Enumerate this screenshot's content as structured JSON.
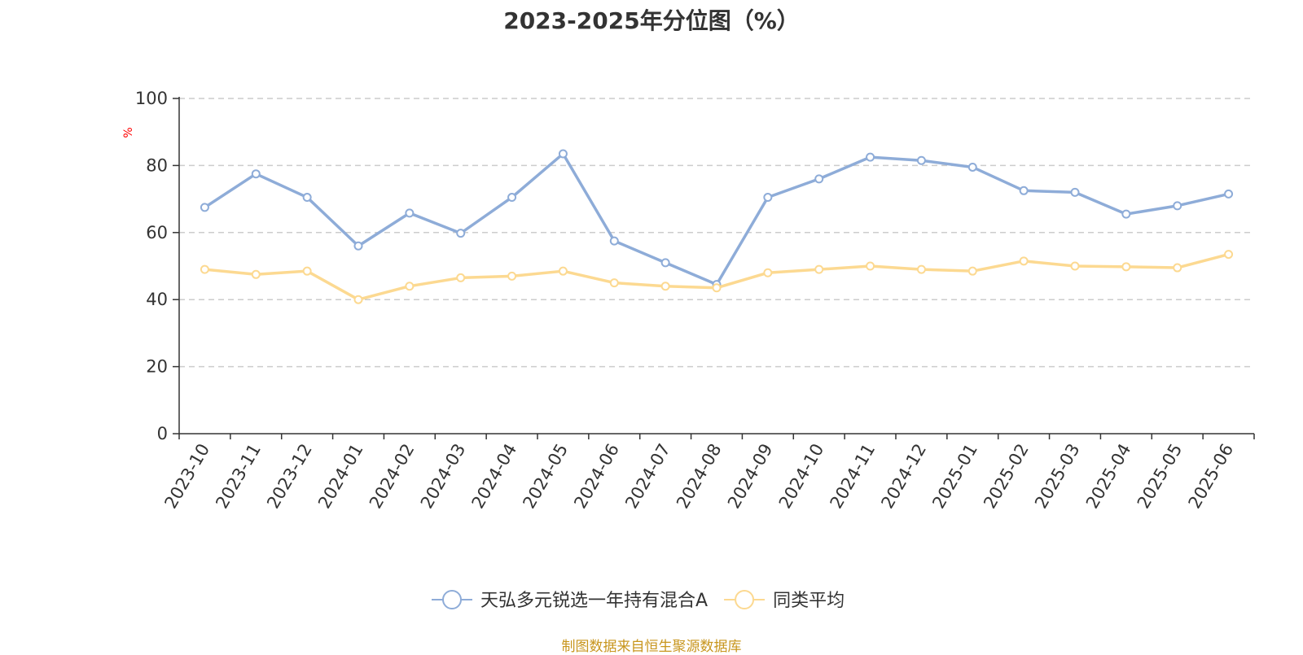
{
  "chart_data": {
    "type": "line",
    "title": "2023-2025年分位图（%）",
    "ylabel": "%",
    "xlabel": "",
    "ylim": [
      0,
      100
    ],
    "yticks": [
      0,
      20,
      40,
      60,
      80,
      100
    ],
    "grid": true,
    "legend_position": "bottom",
    "categories": [
      "2023-10",
      "2023-11",
      "2023-12",
      "2024-01",
      "2024-02",
      "2024-03",
      "2024-04",
      "2024-05",
      "2024-06",
      "2024-07",
      "2024-08",
      "2024-09",
      "2024-10",
      "2024-11",
      "2024-12",
      "2025-01",
      "2025-02",
      "2025-03",
      "2025-04",
      "2025-05",
      "2025-06"
    ],
    "series": [
      {
        "name": "天弘多元锐选一年持有混合A",
        "color": "#8eacd8",
        "values": [
          67.5,
          77.5,
          70.5,
          56,
          65.8,
          59.8,
          70.5,
          83.5,
          57.5,
          51,
          44.5,
          70.5,
          76,
          82.5,
          81.5,
          79.5,
          72.5,
          72,
          65.5,
          68,
          71.5
        ]
      },
      {
        "name": "同类平均",
        "color": "#fcd991",
        "values": [
          49,
          47.5,
          48.5,
          40,
          44,
          46.5,
          47,
          48.5,
          45,
          44,
          43.5,
          48,
          49,
          50,
          49,
          48.5,
          51.5,
          50,
          49.8,
          49.5,
          53.5
        ]
      }
    ]
  },
  "footer": {
    "source": "制图数据来自恒生聚源数据库"
  }
}
